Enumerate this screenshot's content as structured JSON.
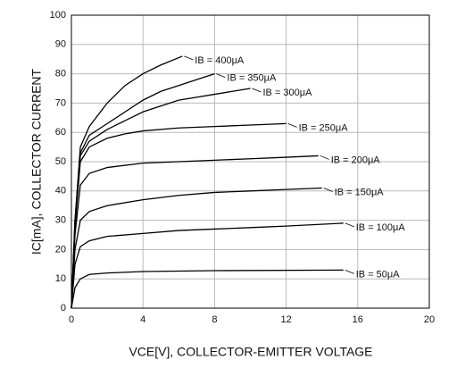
{
  "chart_data": {
    "type": "line",
    "x_label": "VCE[V], COLLECTOR-EMITTER VOLTAGE",
    "y_label": "IC[mA], COLLECTOR CURRENT",
    "xlim": [
      0,
      20
    ],
    "ylim": [
      0,
      100
    ],
    "xticks": [
      0,
      4,
      8,
      12,
      16,
      20
    ],
    "yticks": [
      0,
      10,
      20,
      30,
      40,
      50,
      60,
      70,
      80,
      90,
      100
    ],
    "grid": true,
    "series": [
      {
        "name": "IB = 400μA",
        "color": "#000000",
        "x": [
          0,
          0.2,
          0.5,
          1,
          2,
          3,
          4,
          5,
          6.2
        ],
        "values": [
          0,
          30,
          55,
          62,
          70,
          76,
          80,
          83,
          86
        ]
      },
      {
        "name": "IB = 350μA",
        "color": "#000000",
        "x": [
          0,
          0.2,
          0.5,
          1,
          2,
          3,
          4,
          5,
          6,
          7,
          8
        ],
        "values": [
          0,
          30,
          53,
          59,
          63,
          67,
          71,
          74,
          76,
          78,
          80
        ]
      },
      {
        "name": "IB = 300μA",
        "color": "#000000",
        "x": [
          0,
          0.2,
          0.5,
          1,
          2,
          3,
          4,
          5,
          6,
          7,
          8,
          9,
          10
        ],
        "values": [
          0,
          28,
          52,
          57,
          61,
          64,
          67,
          69,
          71,
          72,
          73,
          74,
          75
        ]
      },
      {
        "name": "IB = 250μA",
        "color": "#000000",
        "x": [
          0,
          0.2,
          0.5,
          1,
          2,
          3,
          4,
          6,
          8,
          10,
          12
        ],
        "values": [
          0,
          28,
          50,
          55,
          58,
          59.5,
          60.5,
          61.5,
          62,
          62.5,
          63
        ]
      },
      {
        "name": "IB = 200μA",
        "color": "#000000",
        "x": [
          0,
          0.2,
          0.5,
          1,
          2,
          4,
          6,
          8,
          10,
          12,
          13.8
        ],
        "values": [
          0,
          25,
          42,
          46,
          48,
          49.5,
          50,
          50.5,
          51,
          51.5,
          52
        ]
      },
      {
        "name": "IB = 150μA",
        "color": "#000000",
        "x": [
          0,
          0.2,
          0.5,
          1,
          2,
          4,
          6,
          8,
          10,
          12,
          14
        ],
        "values": [
          0,
          20,
          30,
          33,
          35,
          37,
          38.5,
          39.5,
          40,
          40.5,
          41
        ]
      },
      {
        "name": "IB = 100μA",
        "color": "#000000",
        "x": [
          0,
          0.2,
          0.5,
          1,
          2,
          4,
          6,
          8,
          10,
          12,
          15.2
        ],
        "values": [
          0,
          15,
          21,
          23,
          24.5,
          25.5,
          26.5,
          27,
          27.5,
          28,
          29
        ]
      },
      {
        "name": "IB = 50μA",
        "color": "#000000",
        "x": [
          0,
          0.2,
          0.5,
          1,
          2,
          4,
          8,
          15.2
        ],
        "values": [
          0,
          7,
          10,
          11.5,
          12,
          12.5,
          12.8,
          13
        ]
      }
    ]
  }
}
